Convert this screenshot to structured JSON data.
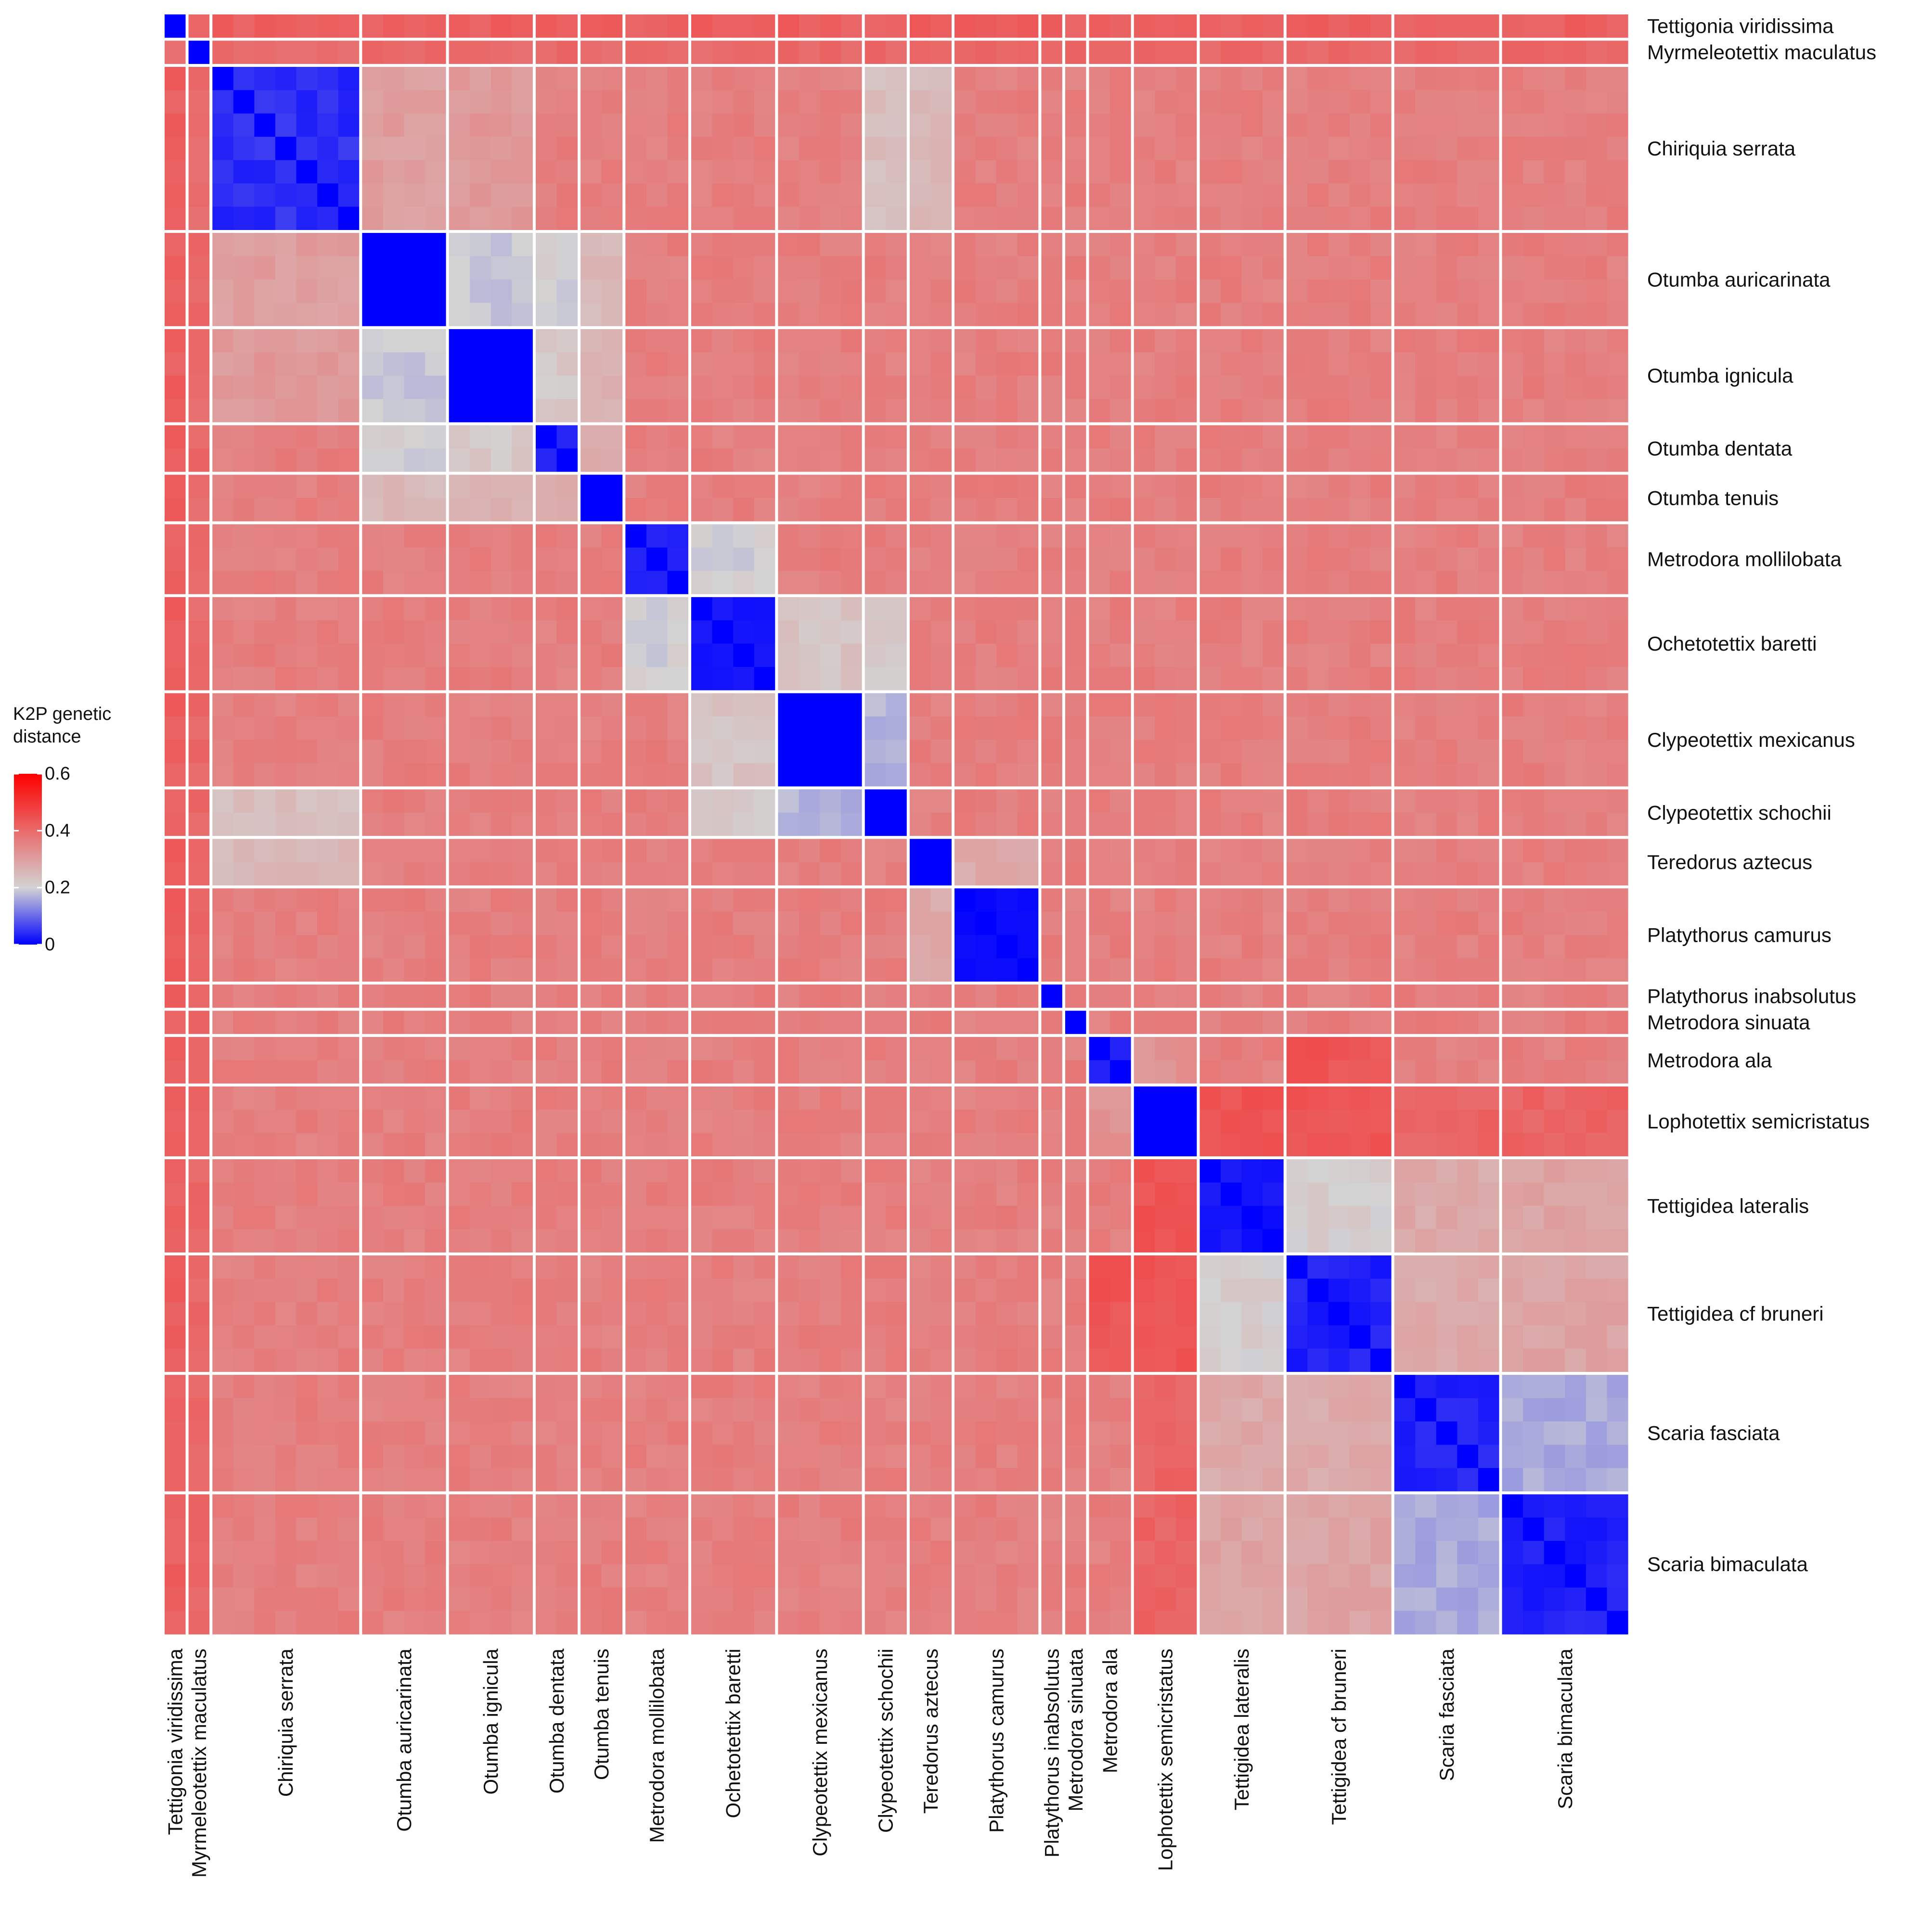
{
  "chart_data": {
    "type": "heatmap",
    "title": "",
    "legend": {
      "title_lines": [
        "K2P genetic",
        "distance"
      ],
      "ticks": [
        0,
        0.2,
        0.4,
        0.6
      ],
      "tick_labels": [
        "0",
        "0.2",
        "0.4",
        "0.6"
      ],
      "range": [
        0,
        0.6
      ],
      "colors": {
        "low": "#0000ff",
        "mid": "#d3d3d3",
        "high": "#ff0000"
      },
      "placement": "left"
    },
    "species": [
      {
        "name": "Tettigonia viridissima",
        "n": 1
      },
      {
        "name": "Myrmeleotettix maculatus",
        "n": 1
      },
      {
        "name": "Chiriquia serrata",
        "n": 7
      },
      {
        "name": "Otumba auricarinata",
        "n": 4
      },
      {
        "name": "Otumba ignicula",
        "n": 4
      },
      {
        "name": "Otumba dentata",
        "n": 2
      },
      {
        "name": "Otumba tenuis",
        "n": 2
      },
      {
        "name": "Metrodora mollilobata",
        "n": 3
      },
      {
        "name": "Ochetotettix baretti",
        "n": 4
      },
      {
        "name": "Clypeotettix mexicanus",
        "n": 4
      },
      {
        "name": "Clypeotettix schochii",
        "n": 2
      },
      {
        "name": "Teredorus aztecus",
        "n": 2
      },
      {
        "name": "Platythorus camurus",
        "n": 4
      },
      {
        "name": "Platythorus inabsolutus",
        "n": 1
      },
      {
        "name": "Metrodora sinuata",
        "n": 1
      },
      {
        "name": "Metrodora ala",
        "n": 2
      },
      {
        "name": "Lophotettix semicristatus",
        "n": 3
      },
      {
        "name": "Tettigidea lateralis",
        "n": 4
      },
      {
        "name": "Tettigidea cf bruneri",
        "n": 5
      },
      {
        "name": "Scaria fasciata",
        "n": 5
      },
      {
        "name": "Scaria bimaculata",
        "n": 6
      }
    ],
    "default_between_distance": 0.36,
    "within_distance": [
      0,
      0,
      0.04,
      0,
      0,
      0.04,
      0,
      0.03,
      0.02,
      0,
      0,
      0,
      0.01,
      0,
      0,
      0.05,
      0,
      0.02,
      0.03,
      0.03,
      0.03
    ],
    "row_distance_overrides": {
      "Tettigonia viridissima": 0.42,
      "Myrmeleotettix maculatus": 0.4
    },
    "pair_distances": [
      {
        "a": "Otumba auricarinata",
        "b": "Otumba ignicula",
        "d": 0.19
      },
      {
        "a": "Otumba auricarinata",
        "b": "Otumba dentata",
        "d": 0.2
      },
      {
        "a": "Otumba ignicula",
        "b": "Otumba dentata",
        "d": 0.22
      },
      {
        "a": "Otumba auricarinata",
        "b": "Otumba tenuis",
        "d": 0.25
      },
      {
        "a": "Otumba ignicula",
        "b": "Otumba tenuis",
        "d": 0.26
      },
      {
        "a": "Otumba dentata",
        "b": "Otumba tenuis",
        "d": 0.27
      },
      {
        "a": "Metrodora mollilobata",
        "b": "Ochetotettix baretti",
        "d": 0.2
      },
      {
        "a": "Clypeotettix mexicanus",
        "b": "Clypeotettix schochii",
        "d": 0.17
      },
      {
        "a": "Ochetotettix baretti",
        "b": "Clypeotettix mexicanus",
        "d": 0.23
      },
      {
        "a": "Ochetotettix baretti",
        "b": "Clypeotettix schochii",
        "d": 0.22
      },
      {
        "a": "Chiriquia serrata",
        "b": "Clypeotettix schochii",
        "d": 0.24
      },
      {
        "a": "Chiriquia serrata",
        "b": "Teredorus aztecus",
        "d": 0.25
      },
      {
        "a": "Chiriquia serrata",
        "b": "Otumba auricarinata",
        "d": 0.3
      },
      {
        "a": "Chiriquia serrata",
        "b": "Otumba ignicula",
        "d": 0.31
      },
      {
        "a": "Platythorus camurus",
        "b": "Teredorus aztecus",
        "d": 0.28
      },
      {
        "a": "Tettigidea lateralis",
        "b": "Tettigidea cf bruneri",
        "d": 0.21
      },
      {
        "a": "Scaria fasciata",
        "b": "Scaria bimaculata",
        "d": 0.16
      },
      {
        "a": "Tettigidea lateralis",
        "b": "Scaria fasciata",
        "d": 0.28
      },
      {
        "a": "Tettigidea lateralis",
        "b": "Scaria bimaculata",
        "d": 0.29
      },
      {
        "a": "Tettigidea cf bruneri",
        "b": "Scaria fasciata",
        "d": 0.28
      },
      {
        "a": "Tettigidea cf bruneri",
        "b": "Scaria bimaculata",
        "d": 0.29
      },
      {
        "a": "Lophotettix semicristatus",
        "b": "Tettigidea lateralis",
        "d": 0.44
      },
      {
        "a": "Lophotettix semicristatus",
        "b": "Tettigidea cf bruneri",
        "d": 0.44
      },
      {
        "a": "Lophotettix semicristatus",
        "b": "Scaria fasciata",
        "d": 0.41
      },
      {
        "a": "Lophotettix semicristatus",
        "b": "Scaria bimaculata",
        "d": 0.41
      },
      {
        "a": "Metrodora ala",
        "b": "Tettigidea cf bruneri",
        "d": 0.44
      },
      {
        "a": "Metrodora ala",
        "b": "Lophotettix semicristatus",
        "d": 0.32
      }
    ]
  }
}
